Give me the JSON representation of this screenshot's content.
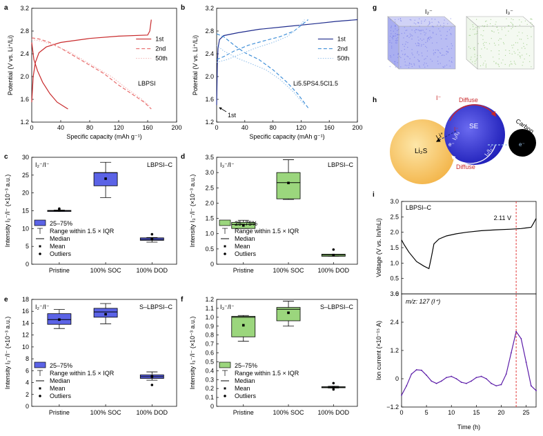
{
  "colors": {
    "red": "#c8282a",
    "pink": "#e86a6a",
    "pink_light": "#f3b8b8",
    "navy": "#1d2a8c",
    "blue": "#3f8fd8",
    "blue_light": "#9cc6ec",
    "box_blue": "#5b63e6",
    "box_green": "#9bd67d",
    "purple": "#5a1aa8",
    "dashred": "#e23a3a",
    "sphere_yellow": "#f7c96a",
    "sphere_blue": "#3a3ad0"
  },
  "panel_labels": {
    "a": "a",
    "b": "b",
    "c": "c",
    "d": "d",
    "e": "e",
    "f": "f",
    "g": "g",
    "h": "h",
    "i": "i"
  },
  "chart_data": [
    {
      "id": "a",
      "type": "line",
      "xlabel": "Specific capacity (mAh g⁻¹)",
      "ylabel": "Potential (V vs. Li⁺/Li)",
      "xlim": [
        0,
        200
      ],
      "ylim": [
        1.2,
        3.2
      ],
      "xticks": [
        "0",
        "40",
        "80",
        "120",
        "160",
        "200"
      ],
      "yticks": [
        "1.2",
        "1.6",
        "2.0",
        "2.4",
        "2.8",
        "3.2"
      ],
      "legend": [
        "1st",
        "2nd",
        "50th"
      ],
      "annotation": "LBPSI",
      "series": [
        {
          "name": "1st",
          "style": "solid",
          "color": "#c8282a",
          "points": [
            [
              0,
              2.6
            ],
            [
              3,
              2.3
            ],
            [
              8,
              2.1
            ],
            [
              15,
              1.9
            ],
            [
              25,
              1.7
            ],
            [
              35,
              1.55
            ],
            [
              45,
              1.47
            ],
            [
              50,
              1.43
            ]
          ]
        },
        {
          "name": "1st charge",
          "style": "solid",
          "color": "#c8282a",
          "points": [
            [
              0,
              1.55
            ],
            [
              2,
              2.0
            ],
            [
              5,
              2.25
            ],
            [
              10,
              2.42
            ],
            [
              20,
              2.52
            ],
            [
              40,
              2.6
            ],
            [
              80,
              2.67
            ],
            [
              120,
              2.71
            ],
            [
              160,
              2.73
            ],
            [
              163,
              2.8
            ],
            [
              165,
              3.0
            ]
          ]
        },
        {
          "name": "2nd",
          "style": "dash",
          "color": "#e86a6a",
          "points": [
            [
              0,
              2.68
            ],
            [
              10,
              2.66
            ],
            [
              25,
              2.6
            ],
            [
              40,
              2.5
            ],
            [
              60,
              2.35
            ],
            [
              80,
              2.2
            ],
            [
              100,
              2.05
            ],
            [
              120,
              1.85
            ],
            [
              140,
              1.68
            ],
            [
              155,
              1.55
            ],
            [
              165,
              1.43
            ]
          ]
        },
        {
          "name": "50th",
          "style": "dot",
          "color": "#f3b8b8",
          "points": [
            [
              0,
              2.65
            ],
            [
              15,
              2.62
            ],
            [
              30,
              2.55
            ],
            [
              50,
              2.45
            ],
            [
              70,
              2.3
            ],
            [
              90,
              2.15
            ],
            [
              110,
              2.0
            ],
            [
              130,
              1.8
            ],
            [
              150,
              1.62
            ],
            [
              163,
              1.48
            ]
          ]
        }
      ]
    },
    {
      "id": "b",
      "type": "line",
      "xlabel": "Specific capacity (mAh g⁻¹)",
      "ylabel": "Potential (V vs. Li⁺/Li)",
      "xlim": [
        0,
        200
      ],
      "ylim": [
        1.2,
        3.2
      ],
      "xticks": [
        "0",
        "40",
        "80",
        "120",
        "160",
        "200"
      ],
      "yticks": [
        "1.2",
        "1.6",
        "2.0",
        "2.4",
        "2.8",
        "3.2"
      ],
      "legend": [
        "1st",
        "2nd",
        "50th"
      ],
      "annotation": "Li5.5PS4.5Cl1.5",
      "arrow_label": "1st",
      "series": [
        {
          "name": "1st",
          "style": "solid",
          "color": "#1d2a8c",
          "points": [
            [
              0,
              1.5
            ],
            [
              1,
              2.2
            ],
            [
              2,
              2.5
            ],
            [
              4,
              2.65
            ],
            [
              10,
              2.72
            ],
            [
              30,
              2.77
            ],
            [
              60,
              2.83
            ],
            [
              100,
              2.88
            ],
            [
              140,
              2.93
            ],
            [
              170,
              2.97
            ],
            [
              200,
              3.0
            ]
          ]
        },
        {
          "name": "2nd charge",
          "style": "dash",
          "color": "#3f8fd8",
          "points": [
            [
              0,
              2.3
            ],
            [
              10,
              2.35
            ],
            [
              25,
              2.45
            ],
            [
              45,
              2.55
            ],
            [
              65,
              2.62
            ],
            [
              90,
              2.7
            ],
            [
              110,
              2.8
            ],
            [
              130,
              3.0
            ]
          ]
        },
        {
          "name": "2nd discharge",
          "style": "dash",
          "color": "#3f8fd8",
          "points": [
            [
              0,
              2.75
            ],
            [
              10,
              2.7
            ],
            [
              25,
              2.55
            ],
            [
              40,
              2.42
            ],
            [
              60,
              2.3
            ],
            [
              80,
              2.12
            ],
            [
              100,
              1.9
            ],
            [
              115,
              1.7
            ],
            [
              130,
              1.45
            ]
          ]
        },
        {
          "name": "50th charge",
          "style": "dot",
          "color": "#9cc6ec",
          "points": [
            [
              0,
              2.25
            ],
            [
              15,
              2.3
            ],
            [
              35,
              2.4
            ],
            [
              55,
              2.5
            ],
            [
              80,
              2.6
            ],
            [
              100,
              2.7
            ],
            [
              115,
              2.85
            ],
            [
              125,
              3.0
            ]
          ]
        },
        {
          "name": "50th discharge",
          "style": "dot",
          "color": "#9cc6ec",
          "points": [
            [
              0,
              2.55
            ],
            [
              10,
              2.45
            ],
            [
              30,
              2.32
            ],
            [
              50,
              2.22
            ],
            [
              70,
              2.12
            ],
            [
              90,
              1.95
            ],
            [
              110,
              1.72
            ],
            [
              125,
              1.5
            ]
          ]
        }
      ]
    },
    {
      "id": "c",
      "type": "box",
      "title": "I₂⁻/I⁻",
      "tag": "LBPSI–C",
      "color": "#5b63e6",
      "ylabel": "Intensity I₂⁻/I⁻ (×10⁻³ a.u.)",
      "ylim": [
        0,
        30
      ],
      "yticks": [
        "0",
        "5",
        "10",
        "15",
        "20",
        "25",
        "30"
      ],
      "categories": [
        "Pristine",
        "100% SOC",
        "100% DOD"
      ],
      "boxes": [
        {
          "q1": 14.9,
          "q3": 15.1,
          "median": 15.0,
          "mean": 15.1,
          "wlo": 14.8,
          "whi": 15.2,
          "outliers": [
            15.6
          ]
        },
        {
          "q1": 22.0,
          "q3": 25.7,
          "median": 25.7,
          "mean": 24.0,
          "wlo": 18.7,
          "whi": 28.6,
          "outliers": []
        },
        {
          "q1": 6.7,
          "q3": 7.4,
          "median": 7.0,
          "mean": 7.1,
          "wlo": 6.2,
          "whi": 7.5,
          "outliers": [
            8.4
          ]
        }
      ],
      "legend": [
        "25–75%",
        "Range within 1.5 × IQR",
        "Median",
        "Mean",
        "Outliers"
      ]
    },
    {
      "id": "d",
      "type": "box",
      "title": "I₃⁻/I⁻",
      "tag": "LBPSI–C",
      "color": "#9bd67d",
      "ylabel": "Intensity I₃⁻/I⁻ (×10⁻³ a.u.)",
      "ylim": [
        0,
        3.5
      ],
      "yticks": [
        "0",
        "0.5",
        "1.0",
        "1.5",
        "2.0",
        "2.5",
        "3.0",
        "3.5"
      ],
      "categories": [
        "Pristine",
        "100% SOC",
        "100% DOD"
      ],
      "boxes": [
        {
          "q1": 1.17,
          "q3": 1.37,
          "median": 1.3,
          "mean": 1.27,
          "wlo": 1.17,
          "whi": 1.44,
          "outliers": []
        },
        {
          "q1": 2.14,
          "q3": 3.0,
          "median": 2.67,
          "mean": 2.66,
          "wlo": 2.12,
          "whi": 3.42,
          "outliers": []
        },
        {
          "q1": 0.26,
          "q3": 0.33,
          "median": 0.3,
          "mean": 0.3,
          "wlo": 0.26,
          "whi": 0.33,
          "outliers": [
            0.48
          ]
        }
      ],
      "legend": [
        "25–75%",
        "Range within 1.5 × IQR",
        "Median",
        "Mean",
        "Outliers"
      ]
    },
    {
      "id": "e",
      "type": "box",
      "title": "I₂⁻/I⁻",
      "tag": "S–LBPSI–C",
      "color": "#5b63e6",
      "ylabel": "Intensity I₂⁻/I⁻ (×10⁻³ a.u.)",
      "ylim": [
        0,
        18
      ],
      "yticks": [
        "0",
        "2",
        "4",
        "6",
        "8",
        "10",
        "12",
        "14",
        "16",
        "18"
      ],
      "categories": [
        "Pristine",
        "100% SOC",
        "100% DOD"
      ],
      "boxes": [
        {
          "q1": 13.8,
          "q3": 15.6,
          "median": 14.6,
          "mean": 14.6,
          "wlo": 13.1,
          "whi": 16.3,
          "outliers": []
        },
        {
          "q1": 15.0,
          "q3": 16.5,
          "median": 15.9,
          "mean": 15.5,
          "wlo": 13.9,
          "whi": 17.3,
          "outliers": []
        },
        {
          "q1": 4.7,
          "q3": 5.3,
          "median": 5.0,
          "mean": 5.0,
          "wlo": 4.4,
          "whi": 5.8,
          "outliers": [
            3.6
          ]
        }
      ],
      "legend": [
        "25–75%",
        "Range within 1.5 × IQR",
        "Median",
        "Mean",
        "Outliers"
      ]
    },
    {
      "id": "f",
      "type": "box",
      "title": "I₃⁻/I⁻",
      "tag": "S–LBPSI–C",
      "color": "#9bd67d",
      "ylabel": "Intensity I₃⁻/I⁻ (×10⁻³ a.u.)",
      "ylim": [
        0,
        1.2
      ],
      "yticks": [
        "0",
        "0.1",
        "0.2",
        "0.3",
        "0.4",
        "0.5",
        "0.6",
        "0.7",
        "0.8",
        "0.9",
        "1.0",
        "1.1",
        "1.2"
      ],
      "categories": [
        "Pristine",
        "100% SOC",
        "100% DOD"
      ],
      "boxes": [
        {
          "q1": 0.78,
          "q3": 1.01,
          "median": 1.0,
          "mean": 0.91,
          "wlo": 0.73,
          "whi": 1.02,
          "outliers": []
        },
        {
          "q1": 0.96,
          "q3": 1.11,
          "median": 1.09,
          "mean": 1.05,
          "wlo": 0.9,
          "whi": 1.18,
          "outliers": []
        },
        {
          "q1": 0.21,
          "q3": 0.22,
          "median": 0.215,
          "mean": 0.215,
          "wlo": 0.205,
          "whi": 0.225,
          "outliers": [
            0.26,
            0.19
          ]
        }
      ],
      "legend": [
        "25–75%",
        "Range within 1.5 × IQR",
        "Median",
        "Mean",
        "Outliers"
      ]
    },
    {
      "id": "i_top",
      "type": "line",
      "tag": "LBPSI–C",
      "ylabel": "Voltage (V vs. In/InLi)",
      "ylim": [
        0,
        3.0
      ],
      "xlim": [
        0,
        27
      ],
      "yticks": [
        "0",
        "0.5",
        "1.0",
        "1.5",
        "2.0",
        "2.5",
        "3.0"
      ],
      "annotation": "2.11 V",
      "vline_x": 23,
      "series": [
        {
          "name": "voltage",
          "color": "#000000",
          "points": [
            [
              0,
              1.75
            ],
            [
              0.5,
              1.6
            ],
            [
              1.5,
              1.35
            ],
            [
              3,
              1.05
            ],
            [
              4.5,
              0.9
            ],
            [
              5.5,
              0.82
            ],
            [
              6,
              1.2
            ],
            [
              6.5,
              1.62
            ],
            [
              7.5,
              1.78
            ],
            [
              9,
              1.88
            ],
            [
              11,
              1.95
            ],
            [
              13,
              2.0
            ],
            [
              16,
              2.05
            ],
            [
              19,
              2.08
            ],
            [
              22,
              2.1
            ],
            [
              24,
              2.12
            ],
            [
              25,
              2.14
            ],
            [
              26,
              2.16
            ],
            [
              26.5,
              2.3
            ],
            [
              27,
              2.45
            ]
          ]
        }
      ]
    },
    {
      "id": "i_bottom",
      "type": "line",
      "ylabel": "Ion current (×10⁻¹⁵ A)",
      "xlabel": "Time (h)",
      "xlim": [
        0,
        27
      ],
      "ylim": [
        -1.2,
        3.6
      ],
      "xticks": [
        "0",
        "5",
        "10",
        "15",
        "20",
        "25"
      ],
      "yticks": [
        "−1.2",
        "0",
        "1.2",
        "2.4",
        "3.6"
      ],
      "annotation": "m/z: 127 (I⁺)",
      "vline_x": 23,
      "series": [
        {
          "name": "m/z 127",
          "color": "#5a1aa8",
          "points": [
            [
              0,
              -0.7
            ],
            [
              1,
              -0.3
            ],
            [
              2,
              0.2
            ],
            [
              3,
              0.38
            ],
            [
              4,
              0.36
            ],
            [
              5,
              0.15
            ],
            [
              6,
              -0.1
            ],
            [
              7,
              -0.2
            ],
            [
              8,
              -0.1
            ],
            [
              9,
              0.05
            ],
            [
              10,
              0.1
            ],
            [
              11,
              0.0
            ],
            [
              12,
              -0.15
            ],
            [
              13,
              -0.2
            ],
            [
              14,
              -0.1
            ],
            [
              15,
              0.05
            ],
            [
              16,
              0.1
            ],
            [
              17,
              0.0
            ],
            [
              18,
              -0.2
            ],
            [
              19,
              -0.3
            ],
            [
              20,
              -0.25
            ],
            [
              21,
              0.2
            ],
            [
              22,
              1.1
            ],
            [
              23,
              2.0
            ],
            [
              24,
              1.7
            ],
            [
              25,
              0.7
            ],
            [
              26,
              -0.3
            ],
            [
              27,
              -0.5
            ]
          ]
        }
      ]
    }
  ],
  "g": {
    "left_label": "I₂⁻",
    "right_label": "I₃⁻"
  },
  "h": {
    "iodide": "I⁻",
    "diffuse_top": "Diffuse",
    "diffuse_bottom": "Diffuse",
    "se": "SE",
    "carbon": "Carbon",
    "li2s": "Li₂S",
    "li_plus": "Li⁺",
    "e_minus": "e⁻",
    "e_minus_right": "e⁻",
    "i2_i3_a": "I₂/I₃",
    "i2_i3_b": "I₂/I₃⁻",
    "i_minus_inner": "I⁻"
  }
}
